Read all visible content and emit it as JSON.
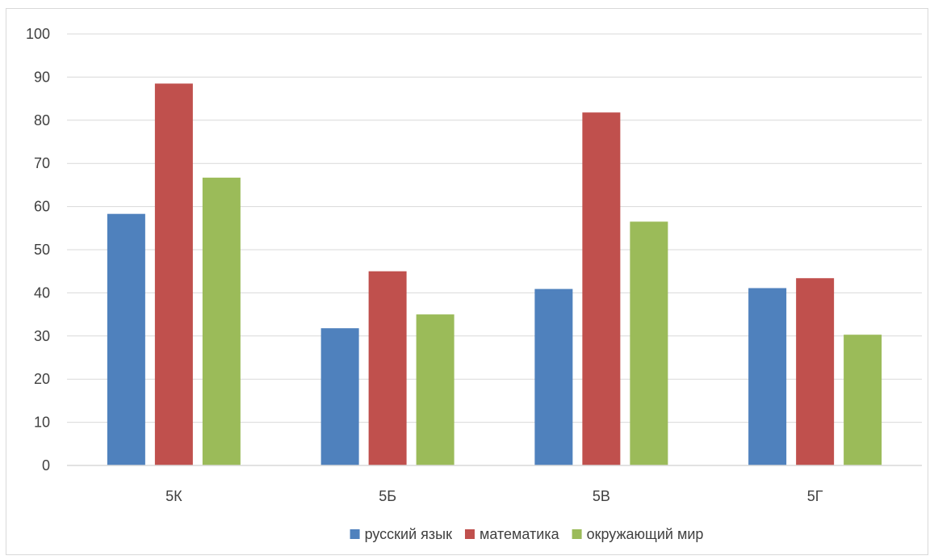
{
  "chart_data": {
    "type": "bar",
    "categories": [
      "5К",
      "5Б",
      "5В",
      "5Г"
    ],
    "series": [
      {
        "name": "русский язык",
        "color": "#4f81bd",
        "values": [
          58.3,
          31.8,
          40.9,
          41.1
        ]
      },
      {
        "name": "математика",
        "color": "#c0504d",
        "values": [
          88.5,
          45.0,
          81.8,
          43.4
        ]
      },
      {
        "name": "окружающий мир",
        "color": "#9bbb59",
        "values": [
          66.7,
          35.0,
          56.5,
          30.3
        ]
      }
    ],
    "title": "",
    "xlabel": "",
    "ylabel": "",
    "ylim": [
      0,
      100
    ],
    "yticks": [
      0,
      10,
      20,
      30,
      40,
      50,
      60,
      70,
      80,
      90,
      100
    ],
    "grid": true,
    "legend_position": "bottom"
  }
}
